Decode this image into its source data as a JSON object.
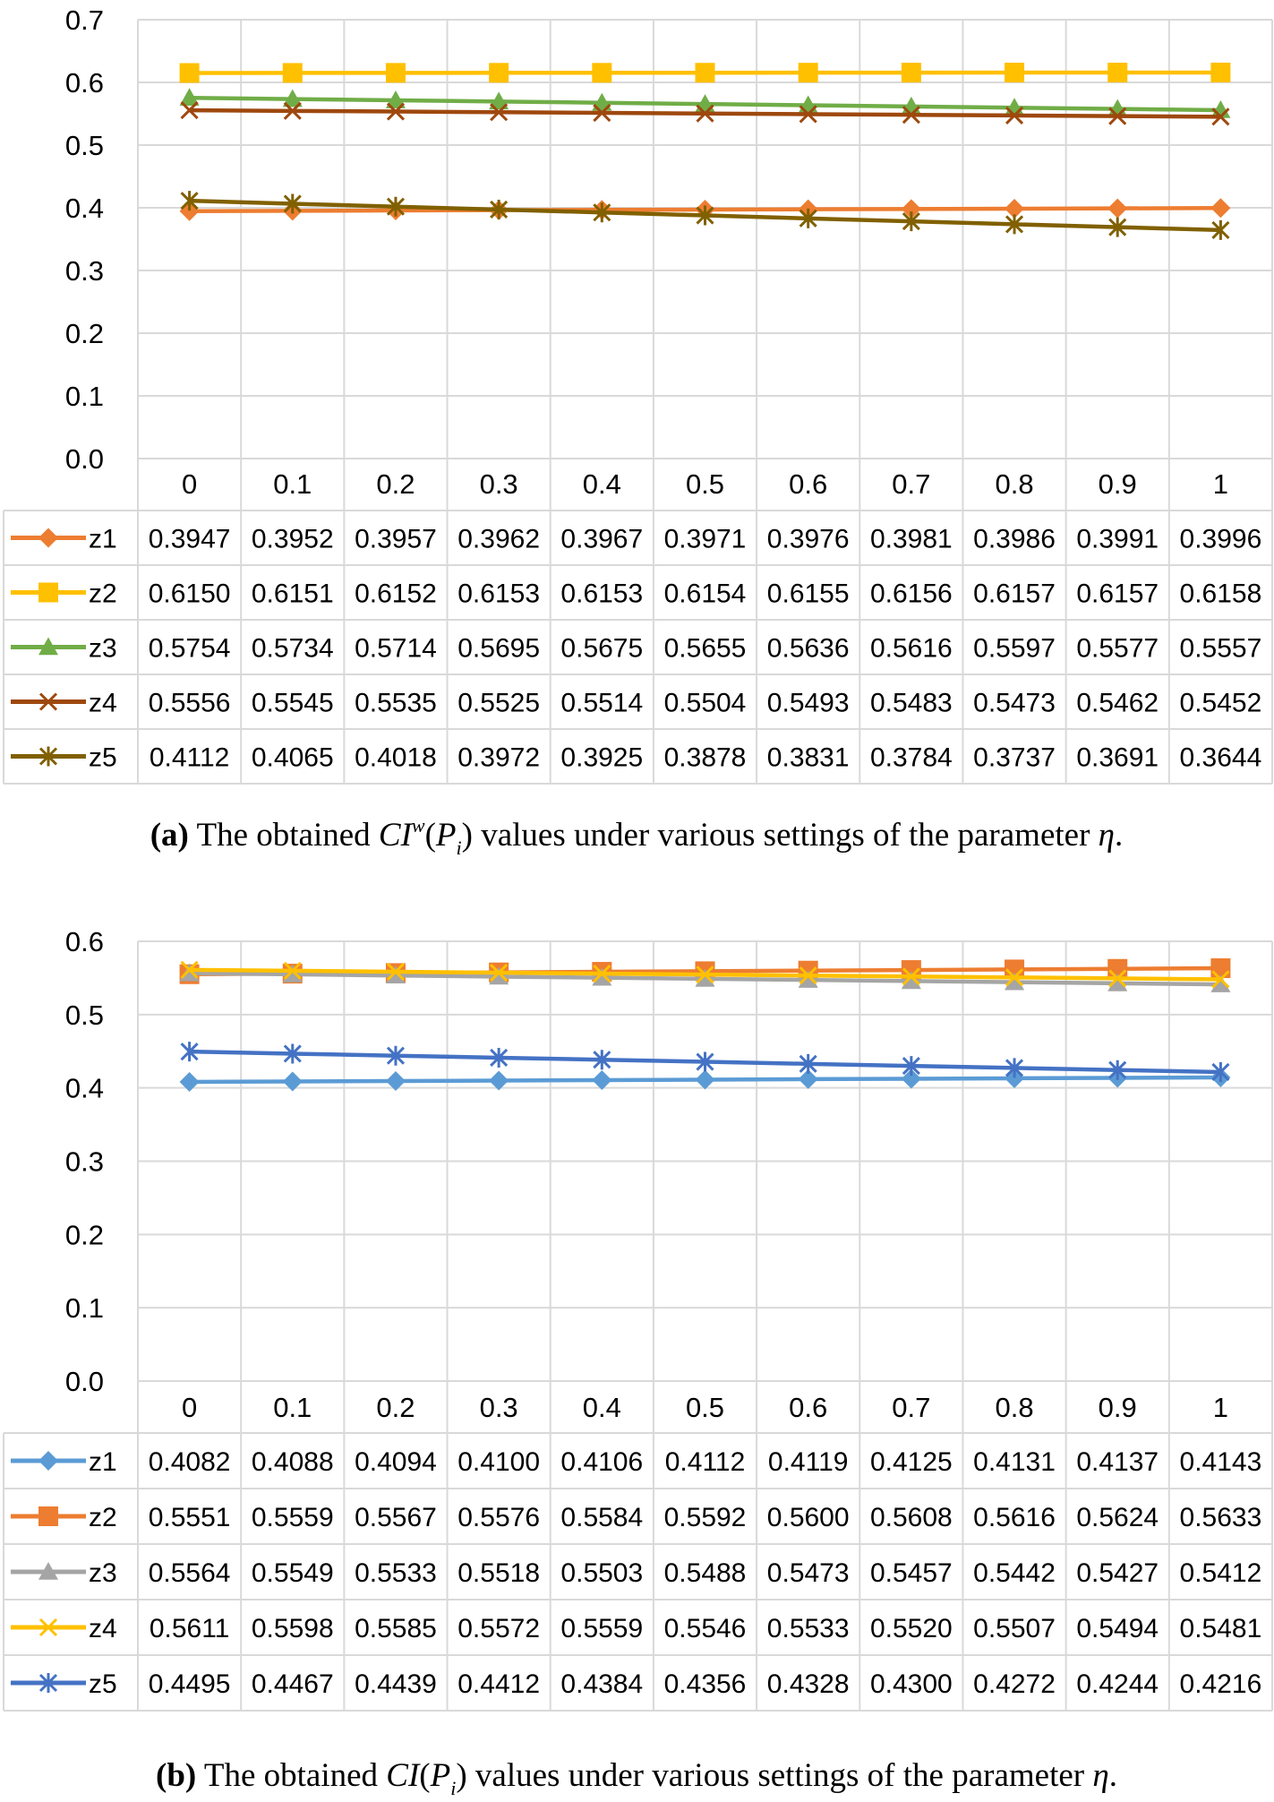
{
  "chart_data": [
    {
      "type": "line",
      "ylim": [
        0,
        0.7
      ],
      "yticks": [
        "0.0",
        "0.1",
        "0.2",
        "0.3",
        "0.4",
        "0.5",
        "0.6",
        "0.7"
      ],
      "categories": [
        "0",
        "0.1",
        "0.2",
        "0.3",
        "0.4",
        "0.5",
        "0.6",
        "0.7",
        "0.8",
        "0.9",
        "1"
      ],
      "grid": true,
      "legend_placement": "data-table-left",
      "series": [
        {
          "name": "z1",
          "color": "#ED7D31",
          "marker": "diamond",
          "values": [
            0.3947,
            0.3952,
            0.3957,
            0.3962,
            0.3967,
            0.3971,
            0.3976,
            0.3981,
            0.3986,
            0.3991,
            0.3996
          ],
          "labels": [
            "0.3947",
            "0.3952",
            "0.3957",
            "0.3962",
            "0.3967",
            "0.3971",
            "0.3976",
            "0.3981",
            "0.3986",
            "0.3991",
            "0.3996"
          ]
        },
        {
          "name": "z2",
          "color": "#FFC000",
          "marker": "square",
          "values": [
            0.615,
            0.6151,
            0.6152,
            0.6153,
            0.6153,
            0.6154,
            0.6155,
            0.6156,
            0.6157,
            0.6157,
            0.6158
          ],
          "labels": [
            "0.6150",
            "0.6151",
            "0.6152",
            "0.6153",
            "0.6153",
            "0.6154",
            "0.6155",
            "0.6156",
            "0.6157",
            "0.6157",
            "0.6158"
          ]
        },
        {
          "name": "z3",
          "color": "#70AD47",
          "marker": "triangle",
          "values": [
            0.5754,
            0.5734,
            0.5714,
            0.5695,
            0.5675,
            0.5655,
            0.5636,
            0.5616,
            0.5597,
            0.5577,
            0.5557
          ],
          "labels": [
            "0.5754",
            "0.5734",
            "0.5714",
            "0.5695",
            "0.5675",
            "0.5655",
            "0.5636",
            "0.5616",
            "0.5597",
            "0.5577",
            "0.5557"
          ]
        },
        {
          "name": "z4",
          "color": "#9E480E",
          "marker": "x",
          "values": [
            0.5556,
            0.5545,
            0.5535,
            0.5525,
            0.5514,
            0.5504,
            0.5493,
            0.5483,
            0.5473,
            0.5462,
            0.5452
          ],
          "labels": [
            "0.5556",
            "0.5545",
            "0.5535",
            "0.5525",
            "0.5514",
            "0.5504",
            "0.5493",
            "0.5483",
            "0.5473",
            "0.5462",
            "0.5452"
          ]
        },
        {
          "name": "z5",
          "color": "#806000",
          "marker": "star",
          "values": [
            0.4112,
            0.4065,
            0.4018,
            0.3972,
            0.3925,
            0.3878,
            0.3831,
            0.3784,
            0.3737,
            0.3691,
            0.3644
          ],
          "labels": [
            "0.4112",
            "0.4065",
            "0.4018",
            "0.3972",
            "0.3925",
            "0.3878",
            "0.3831",
            "0.3784",
            "0.3737",
            "0.3691",
            "0.3644"
          ]
        }
      ],
      "caption": {
        "label": "(a)",
        "before": "The obtained",
        "symbol": "CI",
        "superscript": "w",
        "argument": "P",
        "accent": "~",
        "subscript": "i",
        "after": "values under various settings of the parameter",
        "param": "η",
        "end": "."
      }
    },
    {
      "type": "line",
      "ylim": [
        0,
        0.6
      ],
      "yticks": [
        "0.0",
        "0.1",
        "0.2",
        "0.3",
        "0.4",
        "0.5",
        "0.6"
      ],
      "categories": [
        "0",
        "0.1",
        "0.2",
        "0.3",
        "0.4",
        "0.5",
        "0.6",
        "0.7",
        "0.8",
        "0.9",
        "1"
      ],
      "grid": true,
      "legend_placement": "data-table-left",
      "series": [
        {
          "name": "z1",
          "color": "#5B9BD5",
          "marker": "diamond",
          "values": [
            0.4082,
            0.4088,
            0.4094,
            0.41,
            0.4106,
            0.4112,
            0.4119,
            0.4125,
            0.4131,
            0.4137,
            0.4143
          ],
          "labels": [
            "0.4082",
            "0.4088",
            "0.4094",
            "0.4100",
            "0.4106",
            "0.4112",
            "0.4119",
            "0.4125",
            "0.4131",
            "0.4137",
            "0.4143"
          ]
        },
        {
          "name": "z2",
          "color": "#ED7D31",
          "marker": "square",
          "values": [
            0.5551,
            0.5559,
            0.5567,
            0.5576,
            0.5584,
            0.5592,
            0.56,
            0.5608,
            0.5616,
            0.5624,
            0.5633
          ],
          "labels": [
            "0.5551",
            "0.5559",
            "0.5567",
            "0.5576",
            "0.5584",
            "0.5592",
            "0.5600",
            "0.5608",
            "0.5616",
            "0.5624",
            "0.5633"
          ]
        },
        {
          "name": "z3",
          "color": "#A5A5A5",
          "marker": "triangle",
          "values": [
            0.5564,
            0.5549,
            0.5533,
            0.5518,
            0.5503,
            0.5488,
            0.5473,
            0.5457,
            0.5442,
            0.5427,
            0.5412
          ],
          "labels": [
            "0.5564",
            "0.5549",
            "0.5533",
            "0.5518",
            "0.5503",
            "0.5488",
            "0.5473",
            "0.5457",
            "0.5442",
            "0.5427",
            "0.5412"
          ]
        },
        {
          "name": "z4",
          "color": "#FFC000",
          "marker": "x",
          "values": [
            0.5611,
            0.5598,
            0.5585,
            0.5572,
            0.5559,
            0.5546,
            0.5533,
            0.552,
            0.5507,
            0.5494,
            0.5481
          ],
          "labels": [
            "0.5611",
            "0.5598",
            "0.5585",
            "0.5572",
            "0.5559",
            "0.5546",
            "0.5533",
            "0.5520",
            "0.5507",
            "0.5494",
            "0.5481"
          ]
        },
        {
          "name": "z5",
          "color": "#4472C4",
          "marker": "star",
          "values": [
            0.4495,
            0.4467,
            0.4439,
            0.4412,
            0.4384,
            0.4356,
            0.4328,
            0.43,
            0.4272,
            0.4244,
            0.4216
          ],
          "labels": [
            "0.4495",
            "0.4467",
            "0.4439",
            "0.4412",
            "0.4384",
            "0.4356",
            "0.4328",
            "0.4300",
            "0.4272",
            "0.4244",
            "0.4216"
          ]
        }
      ],
      "caption": {
        "label": "(b)",
        "before": "The obtained",
        "symbol": "CI",
        "superscript": "",
        "argument": "P",
        "accent": "~",
        "subscript": "i",
        "after": "values under various settings of the parameter",
        "param": "η",
        "end": "."
      }
    }
  ]
}
